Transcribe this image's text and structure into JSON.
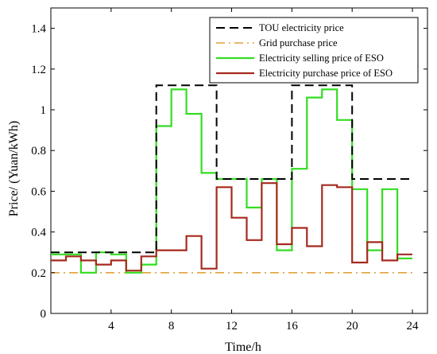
{
  "chart_data": {
    "type": "line",
    "step": true,
    "xlabel": "Time/h",
    "ylabel": "Price/ (Yuan/kWh)",
    "xlim": [
      0,
      25
    ],
    "ylim": [
      0,
      1.5
    ],
    "xticks": [
      4,
      8,
      12,
      16,
      20,
      24
    ],
    "xtick_labels": [
      "4",
      "8",
      "12",
      "16",
      "20",
      "24"
    ],
    "yticks": [
      0,
      0.2,
      0.4,
      0.6,
      0.8,
      1.0,
      1.2,
      1.4
    ],
    "ytick_labels": [
      "0",
      "0.2",
      "0.4",
      "0.6",
      "0.8",
      "1",
      "1.2",
      "1.4"
    ],
    "grid": false,
    "legend_position": "top-right",
    "hours": [
      1,
      2,
      3,
      4,
      5,
      6,
      7,
      8,
      9,
      10,
      11,
      12,
      13,
      14,
      15,
      16,
      17,
      18,
      19,
      20,
      21,
      22,
      23,
      24
    ],
    "series": [
      {
        "name": "TOU electricity price",
        "color": "#000000",
        "style": "dashed",
        "values": [
          0.3,
          0.3,
          0.3,
          0.3,
          0.3,
          0.3,
          0.3,
          1.12,
          1.12,
          1.12,
          1.12,
          0.66,
          0.66,
          0.66,
          0.66,
          0.66,
          1.12,
          1.12,
          1.12,
          1.12,
          0.66,
          0.66,
          0.66,
          0.66
        ]
      },
      {
        "name": "Grid purchase price",
        "color": "#E2A23B",
        "style": "dashdot",
        "values": [
          0.2,
          0.2,
          0.2,
          0.2,
          0.2,
          0.2,
          0.2,
          0.2,
          0.2,
          0.2,
          0.2,
          0.2,
          0.2,
          0.2,
          0.2,
          0.2,
          0.2,
          0.2,
          0.2,
          0.2,
          0.2,
          0.2,
          0.2,
          0.2
        ]
      },
      {
        "name": "Electricity selling price of ESO",
        "color": "#33DD22",
        "style": "solid",
        "values": [
          0.29,
          0.29,
          0.2,
          0.3,
          0.29,
          0.2,
          0.24,
          0.92,
          1.1,
          0.98,
          0.69,
          0.66,
          0.66,
          0.52,
          0.66,
          0.31,
          0.71,
          1.06,
          1.1,
          0.95,
          0.61,
          0.31,
          0.61,
          0.27
        ]
      },
      {
        "name": "Electricity purchase price of ESO",
        "color": "#A52A1E",
        "style": "solid",
        "values": [
          0.26,
          0.28,
          0.26,
          0.24,
          0.26,
          0.21,
          0.28,
          0.31,
          0.31,
          0.38,
          0.22,
          0.62,
          0.47,
          0.36,
          0.64,
          0.34,
          0.42,
          0.33,
          0.63,
          0.62,
          0.25,
          0.35,
          0.26,
          0.29
        ]
      }
    ]
  }
}
